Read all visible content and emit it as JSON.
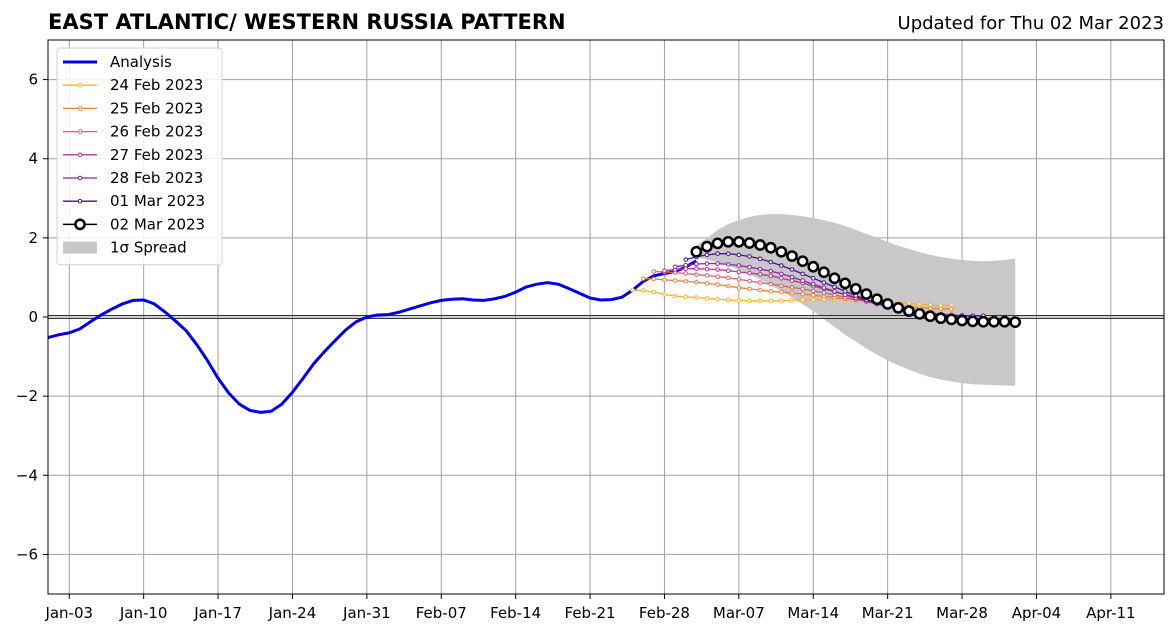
{
  "chart_data": {
    "type": "line",
    "title": "EAST ATLANTIC/ WESTERN RUSSIA PATTERN",
    "subtitle": "Updated for Thu 02 Mar 2023",
    "xlabel": "",
    "ylabel": "",
    "xlim": [
      "2023-01-01",
      "2023-04-16"
    ],
    "ylim": [
      -7,
      7
    ],
    "x_ticks": [
      "2023-01-03",
      "2023-01-10",
      "2023-01-17",
      "2023-01-24",
      "2023-01-31",
      "2023-02-07",
      "2023-02-14",
      "2023-02-21",
      "2023-02-28",
      "2023-03-07",
      "2023-03-14",
      "2023-03-21",
      "2023-03-28",
      "2023-04-04",
      "2023-04-11"
    ],
    "x_tick_labels": [
      "Jan-03",
      "Jan-10",
      "Jan-17",
      "Jan-24",
      "Jan-31",
      "Feb-07",
      "Feb-14",
      "Feb-21",
      "Feb-28",
      "Mar-07",
      "Mar-14",
      "Mar-21",
      "Mar-28",
      "Apr-04",
      "Apr-11"
    ],
    "y_ticks": [
      -6,
      -4,
      -2,
      0,
      2,
      4,
      6
    ],
    "y_tick_labels": [
      "−6",
      "−4",
      "−2",
      "0",
      "2",
      "4",
      "6"
    ],
    "grid": true,
    "legend_position": "top-left",
    "series": [
      {
        "name": "Analysis",
        "color": "#0000ee",
        "style": "thick-line",
        "start": "2023-01-01",
        "values": [
          -0.52,
          -0.45,
          -0.4,
          -0.3,
          -0.12,
          0.05,
          0.2,
          0.33,
          0.42,
          0.43,
          0.33,
          0.13,
          -0.1,
          -0.35,
          -0.7,
          -1.1,
          -1.55,
          -1.92,
          -2.2,
          -2.36,
          -2.41,
          -2.38,
          -2.2,
          -1.9,
          -1.55,
          -1.18,
          -0.88,
          -0.6,
          -0.33,
          -0.12,
          0.0,
          0.05,
          0.06,
          0.12,
          0.2,
          0.28,
          0.36,
          0.42,
          0.45,
          0.46,
          0.43,
          0.42,
          0.46,
          0.52,
          0.63,
          0.76,
          0.83,
          0.87,
          0.83,
          0.72,
          0.6,
          0.48,
          0.43,
          0.44,
          0.5,
          0.68,
          0.9,
          1.04,
          1.1,
          1.15,
          1.26,
          1.42
        ]
      },
      {
        "name": "24 Feb 2023",
        "color": "#fbb22a",
        "style": "small-marker",
        "start": "2023-02-25",
        "values": [
          0.68,
          0.67,
          0.63,
          0.57,
          0.53,
          0.51,
          0.49,
          0.47,
          0.45,
          0.43,
          0.42,
          0.41,
          0.41,
          0.41,
          0.41,
          0.42,
          0.43,
          0.44,
          0.45,
          0.45,
          0.45,
          0.44,
          0.43,
          0.41,
          0.38,
          0.36,
          0.34,
          0.32,
          0.3,
          0.29,
          0.3
        ]
      },
      {
        "name": "25 Feb 2023",
        "color": "#f0803a",
        "style": "small-marker",
        "start": "2023-02-26",
        "values": [
          0.97,
          0.96,
          0.94,
          0.92,
          0.9,
          0.88,
          0.85,
          0.82,
          0.78,
          0.74,
          0.71,
          0.68,
          0.65,
          0.63,
          0.61,
          0.58,
          0.55,
          0.52,
          0.5,
          0.46,
          0.43,
          0.4,
          0.36,
          0.32,
          0.28,
          0.26,
          0.24,
          0.22,
          0.21,
          0.2
        ]
      },
      {
        "name": "26 Feb 2023",
        "color": "#e05f6a",
        "style": "small-marker",
        "start": "2023-02-27",
        "values": [
          1.15,
          1.14,
          1.12,
          1.1,
          1.07,
          1.05,
          1.02,
          0.99,
          0.95,
          0.91,
          0.87,
          0.83,
          0.79,
          0.75,
          0.71,
          0.66,
          0.61,
          0.56,
          0.5,
          0.45,
          0.39,
          0.33,
          0.28,
          0.23,
          0.18,
          0.14,
          0.1,
          0.07,
          0.05,
          0.03
        ]
      },
      {
        "name": "27 Feb 2023",
        "color": "#b2378e",
        "style": "small-marker",
        "start": "2023-02-28",
        "values": [
          1.17,
          1.2,
          1.22,
          1.22,
          1.21,
          1.2,
          1.17,
          1.14,
          1.11,
          1.08,
          1.04,
          0.98,
          0.92,
          0.86,
          0.78,
          0.71,
          0.64,
          0.57,
          0.5,
          0.43,
          0.36,
          0.29,
          0.23,
          0.18,
          0.14,
          0.1,
          0.07,
          0.05,
          0.04
        ]
      },
      {
        "name": "28 Feb 2023",
        "color": "#8c22a8",
        "style": "small-marker",
        "start": "2023-03-01",
        "values": [
          1.27,
          1.31,
          1.34,
          1.35,
          1.35,
          1.33,
          1.3,
          1.26,
          1.21,
          1.16,
          1.09,
          1.01,
          0.92,
          0.83,
          0.74,
          0.65,
          0.56,
          0.48,
          0.4,
          0.33,
          0.26,
          0.2,
          0.15,
          0.1,
          0.07,
          0.05,
          0.04,
          0.03
        ]
      },
      {
        "name": "01 Mar 2023",
        "color": "#4b0f8c",
        "style": "small-marker",
        "start": "2023-03-02",
        "values": [
          1.45,
          1.52,
          1.57,
          1.6,
          1.6,
          1.57,
          1.53,
          1.47,
          1.39,
          1.3,
          1.2,
          1.09,
          0.98,
          0.87,
          0.76,
          0.65,
          0.54,
          0.44,
          0.35,
          0.27,
          0.2,
          0.14,
          0.1,
          0.06,
          0.04,
          0.03,
          0.03,
          0.03,
          0.03
        ]
      },
      {
        "name": "02 Mar 2023",
        "color": "#000000",
        "style": "big-marker",
        "start": "2023-03-03",
        "values": [
          1.65,
          1.78,
          1.86,
          1.9,
          1.9,
          1.87,
          1.82,
          1.75,
          1.65,
          1.54,
          1.41,
          1.27,
          1.13,
          0.98,
          0.85,
          0.71,
          0.58,
          0.45,
          0.33,
          0.23,
          0.15,
          0.08,
          0.02,
          -0.03,
          -0.06,
          -0.09,
          -0.11,
          -0.12,
          -0.12,
          -0.12,
          -0.13
        ]
      }
    ],
    "spread": {
      "name": "1σ Spread",
      "color": "#c8c8c8",
      "start": "2023-03-03",
      "upper": [
        1.8,
        2.0,
        2.2,
        2.35,
        2.45,
        2.53,
        2.58,
        2.6,
        2.6,
        2.58,
        2.55,
        2.5,
        2.45,
        2.38,
        2.3,
        2.2,
        2.1,
        2.0,
        1.9,
        1.8,
        1.72,
        1.64,
        1.57,
        1.52,
        1.47,
        1.44,
        1.42,
        1.41,
        1.42,
        1.44,
        1.47
      ],
      "lower": [
        1.5,
        1.45,
        1.38,
        1.3,
        1.2,
        1.08,
        0.95,
        0.8,
        0.65,
        0.5,
        0.32,
        0.15,
        -0.05,
        -0.25,
        -0.45,
        -0.62,
        -0.8,
        -0.95,
        -1.1,
        -1.22,
        -1.33,
        -1.43,
        -1.52,
        -1.58,
        -1.63,
        -1.67,
        -1.7,
        -1.71,
        -1.72,
        -1.73,
        -1.74
      ]
    }
  }
}
